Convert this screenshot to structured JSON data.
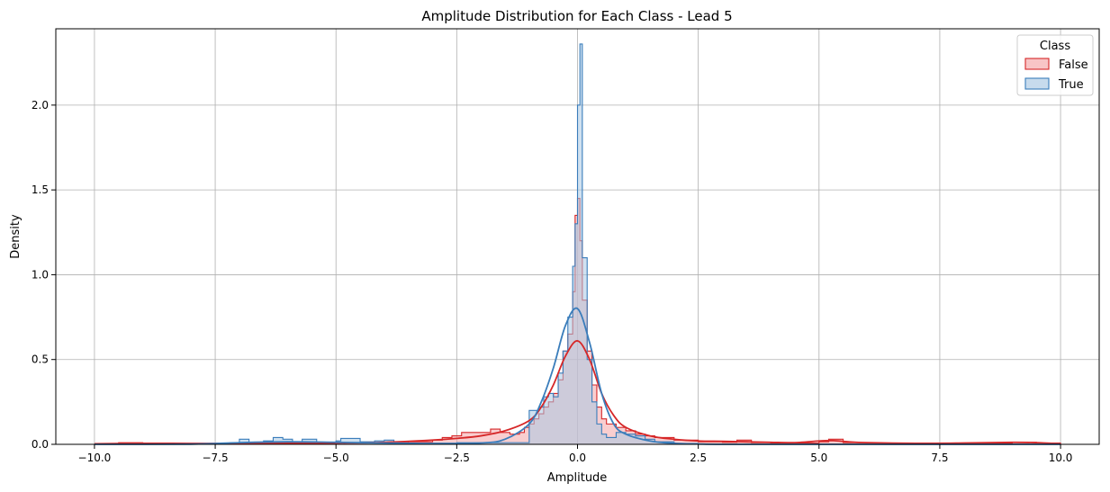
{
  "chart_data": {
    "type": "area",
    "title": "Amplitude Distribution for Each Class - Lead 5",
    "xlabel": "Amplitude",
    "ylabel": "Density",
    "xlim": [
      -10.8,
      10.8
    ],
    "ylim": [
      0,
      2.45
    ],
    "x_ticks": [
      -10.0,
      -7.5,
      -5.0,
      -2.5,
      0.0,
      2.5,
      5.0,
      7.5,
      10.0
    ],
    "x_tick_labels": [
      "−10.0",
      "−7.5",
      "−5.0",
      "−2.5",
      "0.0",
      "2.5",
      "5.0",
      "7.5",
      "10.0"
    ],
    "y_ticks": [
      0.0,
      0.5,
      1.0,
      1.5,
      2.0
    ],
    "y_tick_labels": [
      "0.0",
      "0.5",
      "1.0",
      "1.5",
      "2.0"
    ],
    "grid": true,
    "legend": {
      "title": "Class",
      "placement": "top-right",
      "entries": [
        "False",
        "True"
      ]
    },
    "series": [
      {
        "name": "False",
        "color": "#d62728",
        "fill": "#f4a6a8",
        "hist": [
          [
            -10.0,
            0.0
          ],
          [
            -9.5,
            0.01
          ],
          [
            -9.0,
            0.005
          ],
          [
            -8.0,
            0.003
          ],
          [
            -7.0,
            0.004
          ],
          [
            -6.0,
            0.006
          ],
          [
            -5.0,
            0.008
          ],
          [
            -4.0,
            0.01
          ],
          [
            -3.5,
            0.015
          ],
          [
            -3.0,
            0.025
          ],
          [
            -2.8,
            0.04
          ],
          [
            -2.6,
            0.05
          ],
          [
            -2.4,
            0.07
          ],
          [
            -2.2,
            0.07
          ],
          [
            -2.0,
            0.07
          ],
          [
            -1.8,
            0.09
          ],
          [
            -1.6,
            0.07
          ],
          [
            -1.4,
            0.06
          ],
          [
            -1.2,
            0.07
          ],
          [
            -1.1,
            0.1
          ],
          [
            -1.0,
            0.12
          ],
          [
            -0.9,
            0.15
          ],
          [
            -0.8,
            0.18
          ],
          [
            -0.7,
            0.22
          ],
          [
            -0.6,
            0.25
          ],
          [
            -0.5,
            0.3
          ],
          [
            -0.4,
            0.38
          ],
          [
            -0.3,
            0.55
          ],
          [
            -0.2,
            0.65
          ],
          [
            -0.1,
            0.9
          ],
          [
            -0.05,
            1.35
          ],
          [
            0.0,
            1.45
          ],
          [
            0.05,
            1.2
          ],
          [
            0.1,
            0.85
          ],
          [
            0.2,
            0.55
          ],
          [
            0.3,
            0.35
          ],
          [
            0.4,
            0.22
          ],
          [
            0.5,
            0.15
          ],
          [
            0.6,
            0.12
          ],
          [
            0.8,
            0.1
          ],
          [
            1.0,
            0.08
          ],
          [
            1.2,
            0.06
          ],
          [
            1.4,
            0.05
          ],
          [
            1.6,
            0.04
          ],
          [
            2.0,
            0.025
          ],
          [
            2.5,
            0.015
          ],
          [
            3.0,
            0.012
          ],
          [
            3.3,
            0.025
          ],
          [
            3.6,
            0.01
          ],
          [
            4.0,
            0.008
          ],
          [
            5.0,
            0.015
          ],
          [
            5.2,
            0.03
          ],
          [
            5.5,
            0.01
          ],
          [
            6.0,
            0.008
          ],
          [
            7.0,
            0.006
          ],
          [
            8.0,
            0.006
          ],
          [
            9.0,
            0.012
          ],
          [
            9.5,
            0.008
          ],
          [
            10.0,
            0.0
          ]
        ],
        "kde": [
          [
            -10.0,
            0.003
          ],
          [
            -9.0,
            0.006
          ],
          [
            -8.0,
            0.005
          ],
          [
            -7.0,
            0.005
          ],
          [
            -6.0,
            0.006
          ],
          [
            -5.0,
            0.008
          ],
          [
            -4.0,
            0.012
          ],
          [
            -3.0,
            0.025
          ],
          [
            -2.5,
            0.035
          ],
          [
            -2.0,
            0.05
          ],
          [
            -1.5,
            0.08
          ],
          [
            -1.0,
            0.14
          ],
          [
            -0.75,
            0.22
          ],
          [
            -0.5,
            0.35
          ],
          [
            -0.25,
            0.52
          ],
          [
            0.0,
            0.61
          ],
          [
            0.25,
            0.5
          ],
          [
            0.5,
            0.3
          ],
          [
            0.75,
            0.17
          ],
          [
            1.0,
            0.1
          ],
          [
            1.5,
            0.05
          ],
          [
            2.0,
            0.03
          ],
          [
            2.5,
            0.02
          ],
          [
            3.0,
            0.018
          ],
          [
            3.5,
            0.015
          ],
          [
            4.0,
            0.012
          ],
          [
            4.5,
            0.01
          ],
          [
            5.0,
            0.02
          ],
          [
            5.3,
            0.022
          ],
          [
            5.6,
            0.015
          ],
          [
            6.0,
            0.01
          ],
          [
            7.0,
            0.006
          ],
          [
            8.0,
            0.008
          ],
          [
            9.0,
            0.012
          ],
          [
            9.5,
            0.01
          ],
          [
            10.0,
            0.003
          ]
        ]
      },
      {
        "name": "True",
        "color": "#3a7dbb",
        "fill": "#a9c8e4",
        "hist": [
          [
            -7.0,
            0.03
          ],
          [
            -6.8,
            0.01
          ],
          [
            -6.5,
            0.02
          ],
          [
            -6.3,
            0.04
          ],
          [
            -6.1,
            0.03
          ],
          [
            -5.9,
            0.01
          ],
          [
            -5.7,
            0.03
          ],
          [
            -5.4,
            0.01
          ],
          [
            -5.0,
            0.02
          ],
          [
            -4.9,
            0.035
          ],
          [
            -4.7,
            0.035
          ],
          [
            -4.5,
            0.015
          ],
          [
            -4.2,
            0.02
          ],
          [
            -4.0,
            0.025
          ],
          [
            -3.8,
            0.0
          ],
          [
            -2.5,
            0.01
          ],
          [
            -2.0,
            0.01
          ],
          [
            -1.5,
            0.01
          ],
          [
            -1.2,
            0.01
          ],
          [
            -1.0,
            0.2
          ],
          [
            -0.9,
            0.2
          ],
          [
            -0.8,
            0.22
          ],
          [
            -0.7,
            0.28
          ],
          [
            -0.6,
            0.3
          ],
          [
            -0.5,
            0.28
          ],
          [
            -0.4,
            0.42
          ],
          [
            -0.3,
            0.55
          ],
          [
            -0.2,
            0.75
          ],
          [
            -0.1,
            1.05
          ],
          [
            -0.05,
            1.3
          ],
          [
            0.0,
            2.0
          ],
          [
            0.05,
            2.36
          ],
          [
            0.1,
            1.1
          ],
          [
            0.2,
            0.5
          ],
          [
            0.3,
            0.25
          ],
          [
            0.4,
            0.12
          ],
          [
            0.5,
            0.06
          ],
          [
            0.6,
            0.04
          ],
          [
            0.8,
            0.07
          ],
          [
            1.0,
            0.06
          ],
          [
            1.2,
            0.05
          ],
          [
            1.4,
            0.03
          ],
          [
            1.6,
            0.015
          ],
          [
            2.0,
            0.005
          ],
          [
            2.5,
            0.0
          ]
        ],
        "kde": [
          [
            -10.0,
            0.0
          ],
          [
            -8.0,
            0.001
          ],
          [
            -7.0,
            0.01
          ],
          [
            -6.0,
            0.015
          ],
          [
            -5.0,
            0.012
          ],
          [
            -4.0,
            0.008
          ],
          [
            -3.0,
            0.005
          ],
          [
            -2.0,
            0.008
          ],
          [
            -1.5,
            0.03
          ],
          [
            -1.0,
            0.12
          ],
          [
            -0.75,
            0.25
          ],
          [
            -0.5,
            0.45
          ],
          [
            -0.25,
            0.7
          ],
          [
            0.0,
            0.8
          ],
          [
            0.25,
            0.6
          ],
          [
            0.5,
            0.3
          ],
          [
            0.75,
            0.12
          ],
          [
            1.0,
            0.06
          ],
          [
            1.5,
            0.02
          ],
          [
            2.0,
            0.006
          ],
          [
            2.5,
            0.002
          ],
          [
            3.0,
            0.0
          ],
          [
            5.0,
            0.0
          ],
          [
            10.0,
            0.0
          ]
        ]
      }
    ]
  }
}
